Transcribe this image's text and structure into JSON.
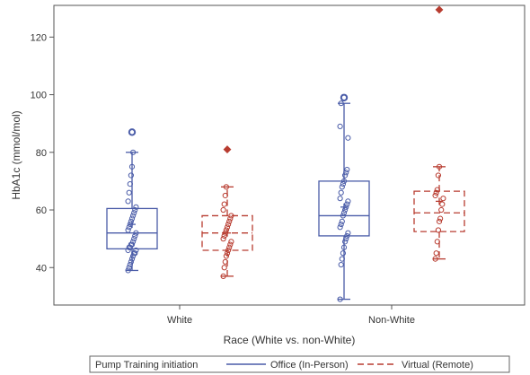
{
  "chart_data": {
    "type": "box",
    "xlabel": "Race (White vs. non-White)",
    "ylabel": "HbA1c (mmol/mol)",
    "ylim": [
      27,
      131
    ],
    "yticks": [
      40,
      60,
      80,
      100,
      120
    ],
    "categories": [
      "White",
      "Non-White"
    ],
    "legend": {
      "title": "Pump Training initiation",
      "placement": "bottom"
    },
    "series": [
      {
        "name": "Office (In-Person)",
        "color": "#4a5ca8",
        "line_style": "solid",
        "boxes": [
          {
            "category": "White",
            "whisker_low": 39,
            "q1": 46.5,
            "median": 52,
            "q3": 60.5,
            "whisker_high": 80,
            "mean": 55,
            "outliers": [
              87
            ],
            "points": [
              39,
              40,
              41,
              42,
              43,
              44,
              45,
              45,
              46,
              46,
              47,
              47,
              48,
              48,
              49,
              50,
              51,
              52,
              53,
              54,
              55,
              56,
              57,
              58,
              59,
              60,
              61,
              63,
              66,
              69,
              72,
              75,
              80
            ]
          },
          {
            "category": "Non-White",
            "whisker_low": 29,
            "q1": 51,
            "median": 58,
            "q3": 70,
            "whisker_high": 97,
            "mean": 61,
            "outliers": [
              99
            ],
            "points": [
              29,
              41,
              43,
              45,
              47,
              49,
              50,
              51,
              52,
              54,
              55,
              56,
              58,
              59,
              60,
              61,
              62,
              63,
              64,
              66,
              68,
              69,
              70,
              72,
              73,
              74,
              85,
              89,
              97
            ]
          }
        ]
      },
      {
        "name": "Virtual (Remote)",
        "color": "#b83c30",
        "line_style": "dashed",
        "boxes": [
          {
            "category": "White",
            "whisker_low": 37,
            "q1": 46,
            "median": 52,
            "q3": 58,
            "whisker_high": 68,
            "mean": 52,
            "outliers": [
              81
            ],
            "points": [
              37,
              40,
              42,
              44,
              45,
              46,
              47,
              48,
              49,
              50,
              51,
              52,
              53,
              54,
              55,
              56,
              57,
              58,
              60,
              62,
              65,
              68
            ]
          },
          {
            "category": "Non-White",
            "whisker_low": 43,
            "q1": 52.5,
            "median": 59,
            "q3": 66.5,
            "whisker_high": 75,
            "mean": 63,
            "outliers": [
              129.5
            ],
            "points": [
              43,
              45,
              49,
              53,
              56,
              57,
              60,
              62,
              64,
              65,
              66,
              67,
              72,
              75
            ]
          }
        ]
      }
    ]
  }
}
